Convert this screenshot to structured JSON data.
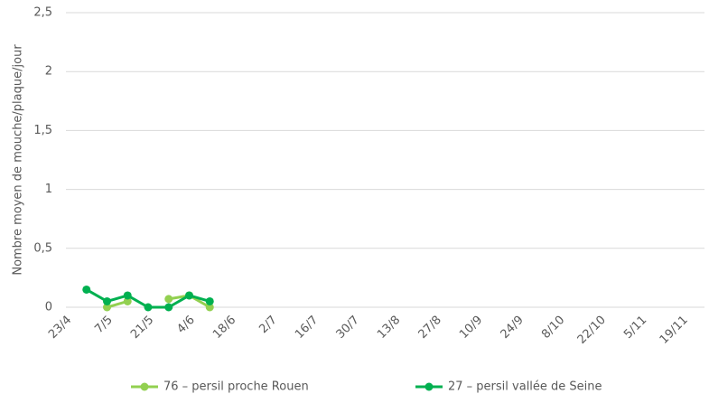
{
  "chart_data": {
    "type": "line",
    "y_label": "Nombre moyen de mouche/plaque/jour",
    "categories": [
      "23/4",
      null,
      "7/5",
      null,
      "21/5",
      null,
      "4/6",
      null,
      "18/6",
      null,
      "2/7",
      null,
      "16/7",
      null,
      "30/7",
      null,
      "13/8",
      null,
      "27/8",
      null,
      "10/9",
      null,
      "24/9",
      null,
      "8/10",
      null,
      "22/10",
      null,
      "5/11",
      null,
      "19/11"
    ],
    "series": [
      {
        "name": "76 – persil proche Rouen",
        "color": "#92d050",
        "values": [
          null,
          null,
          0,
          0.05,
          null,
          0.07,
          0.1,
          0,
          null,
          null,
          null,
          null,
          null,
          null,
          null,
          null,
          null,
          null,
          null,
          null,
          null,
          null,
          null,
          null,
          null,
          null,
          null,
          null,
          null,
          null,
          null
        ]
      },
      {
        "name": "27 – persil vallée de Seine",
        "color": "#00b050",
        "values": [
          null,
          0.15,
          0.05,
          0.1,
          0,
          0,
          0.1,
          0.05,
          null,
          null,
          null,
          null,
          null,
          null,
          null,
          null,
          null,
          null,
          null,
          null,
          null,
          null,
          null,
          null,
          null,
          null,
          null,
          null,
          null,
          null,
          null
        ]
      }
    ],
    "ylim": [
      0,
      2.5
    ],
    "yticks": [
      0,
      {
        "value": 0.5,
        "label": "0,5"
      },
      1,
      {
        "value": 1.5,
        "label": "1,5"
      },
      2,
      {
        "value": 2.5,
        "label": "2,5"
      }
    ],
    "grid": true,
    "legend": "bottom"
  }
}
